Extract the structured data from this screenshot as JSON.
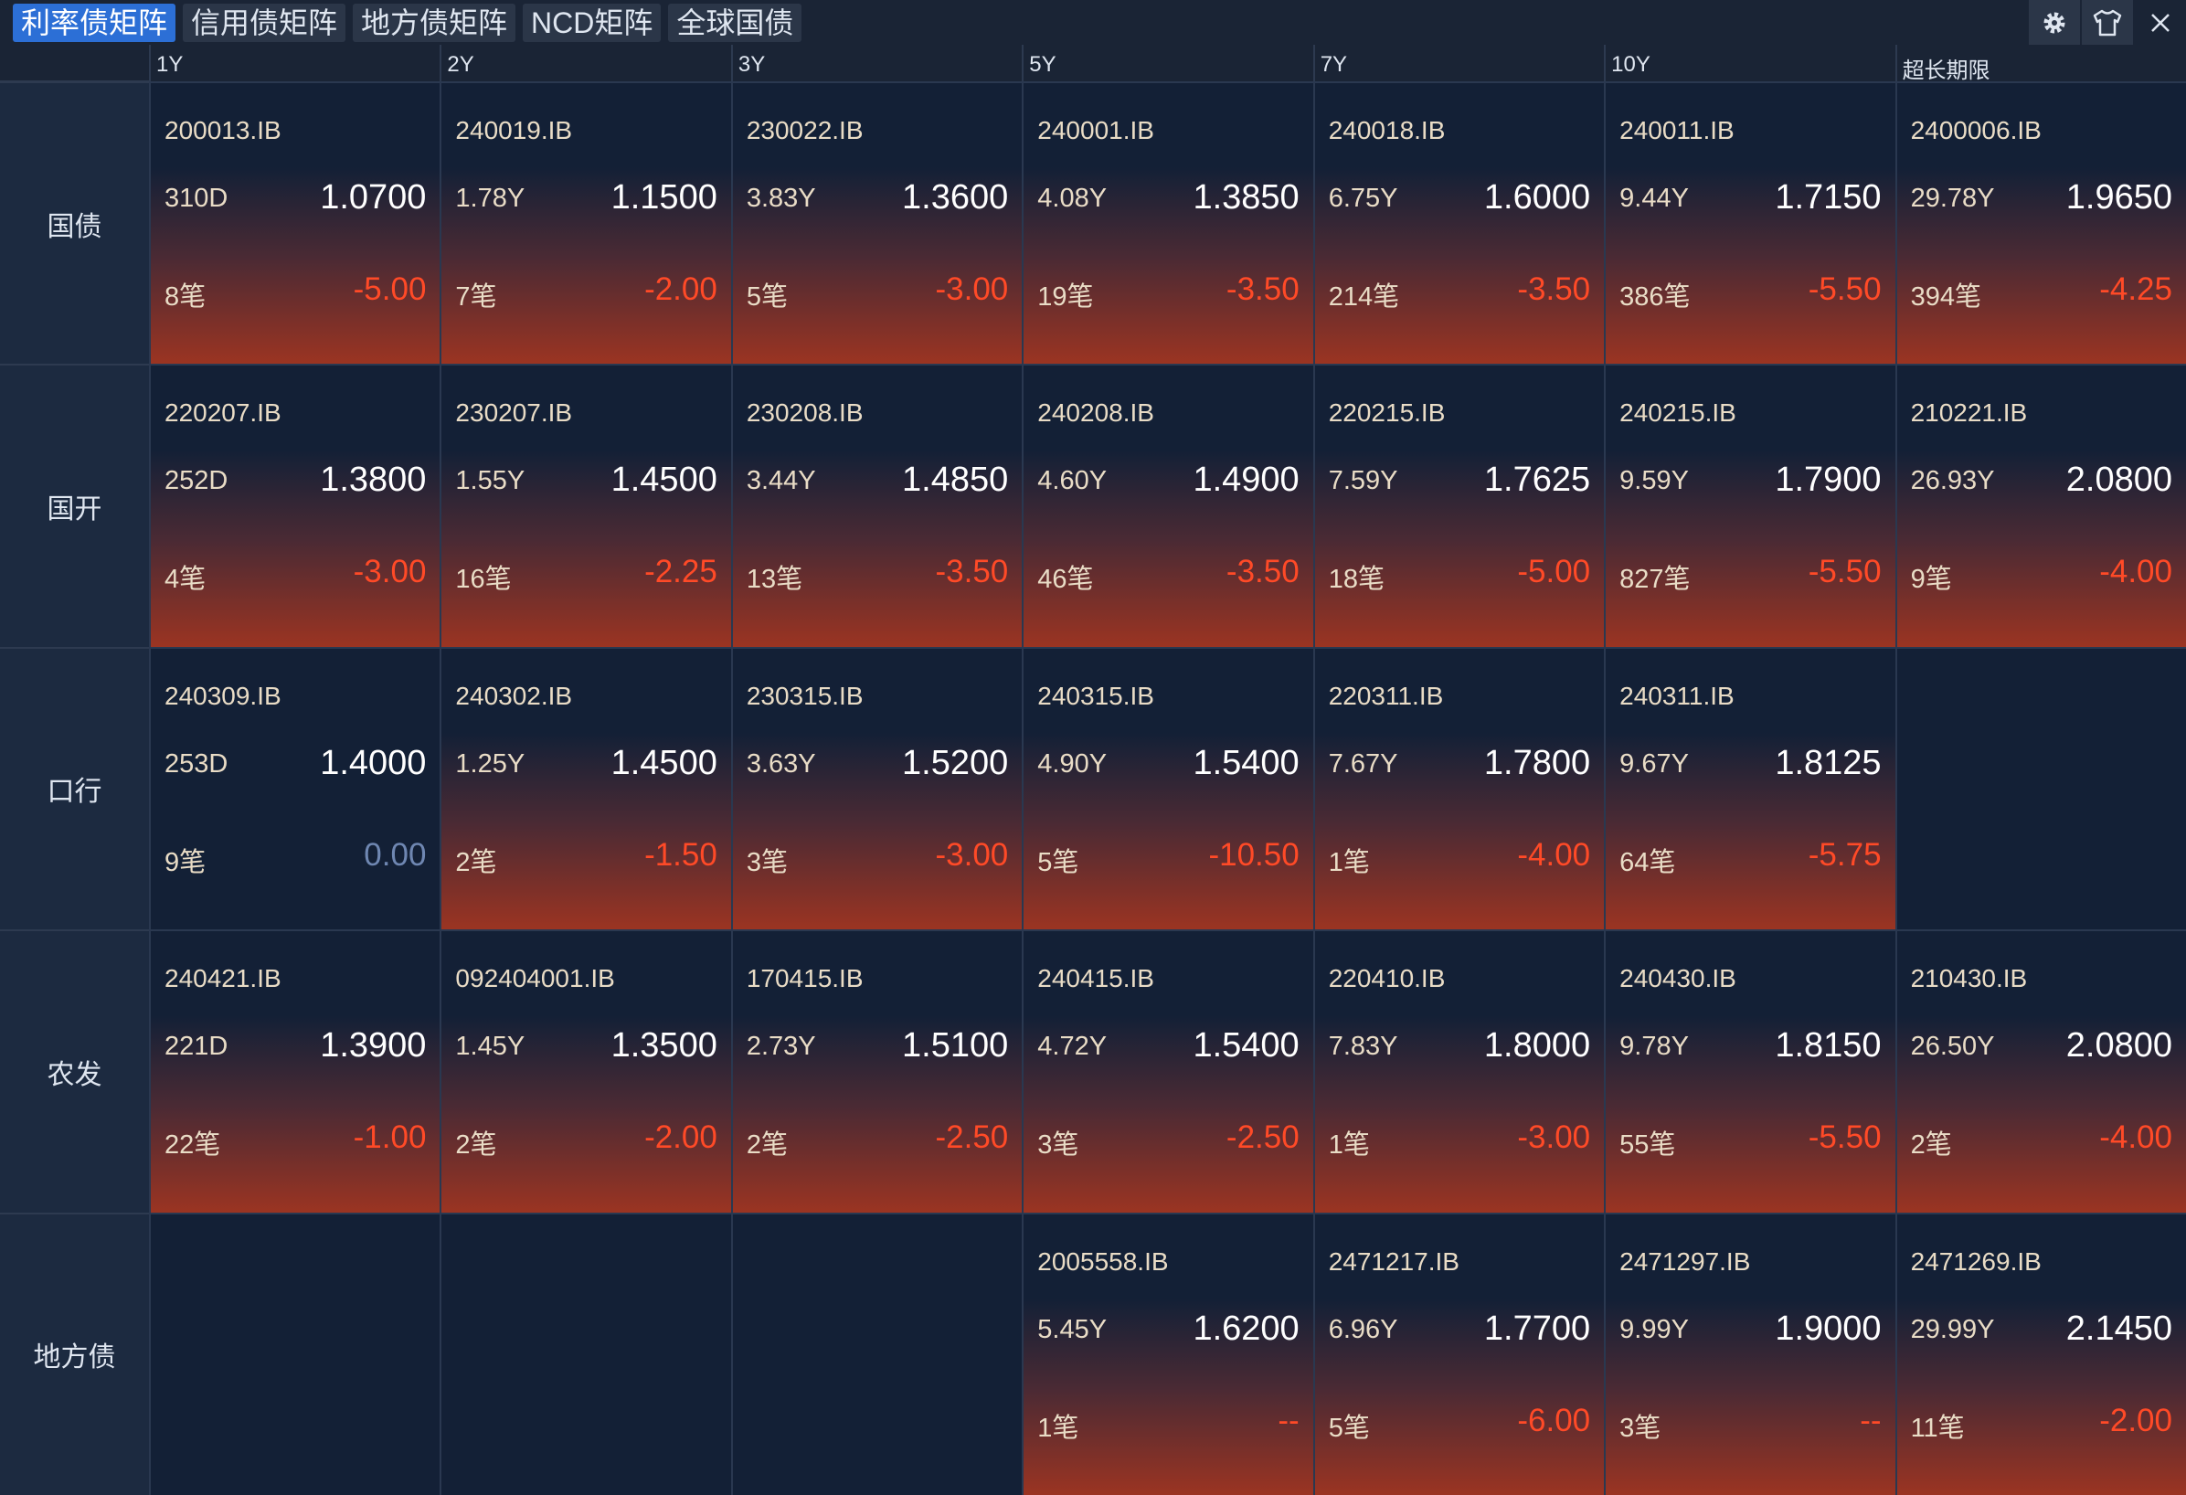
{
  "tabs": [
    "利率债矩阵",
    "信用债矩阵",
    "地方债矩阵",
    "NCD矩阵",
    "全球国债"
  ],
  "columns": [
    "1Y",
    "2Y",
    "3Y",
    "5Y",
    "7Y",
    "10Y",
    "超长期限"
  ],
  "rows": [
    {
      "label": "国债",
      "cells": [
        {
          "code": "200013.IB",
          "term": "310D",
          "yield": "1.0700",
          "count": "8笔",
          "change": "-5.00"
        },
        {
          "code": "240019.IB",
          "term": "1.78Y",
          "yield": "1.1500",
          "count": "7笔",
          "change": "-2.00"
        },
        {
          "code": "230022.IB",
          "term": "3.83Y",
          "yield": "1.3600",
          "count": "5笔",
          "change": "-3.00"
        },
        {
          "code": "240001.IB",
          "term": "4.08Y",
          "yield": "1.3850",
          "count": "19笔",
          "change": "-3.50"
        },
        {
          "code": "240018.IB",
          "term": "6.75Y",
          "yield": "1.6000",
          "count": "214笔",
          "change": "-3.50"
        },
        {
          "code": "240011.IB",
          "term": "9.44Y",
          "yield": "1.7150",
          "count": "386笔",
          "change": "-5.50"
        },
        {
          "code": "2400006.IB",
          "term": "29.78Y",
          "yield": "1.9650",
          "count": "394笔",
          "change": "-4.25"
        }
      ]
    },
    {
      "label": "国开",
      "cells": [
        {
          "code": "220207.IB",
          "term": "252D",
          "yield": "1.3800",
          "count": "4笔",
          "change": "-3.00"
        },
        {
          "code": "230207.IB",
          "term": "1.55Y",
          "yield": "1.4500",
          "count": "16笔",
          "change": "-2.25"
        },
        {
          "code": "230208.IB",
          "term": "3.44Y",
          "yield": "1.4850",
          "count": "13笔",
          "change": "-3.50"
        },
        {
          "code": "240208.IB",
          "term": "4.60Y",
          "yield": "1.4900",
          "count": "46笔",
          "change": "-3.50"
        },
        {
          "code": "220215.IB",
          "term": "7.59Y",
          "yield": "1.7625",
          "count": "18笔",
          "change": "-5.00"
        },
        {
          "code": "240215.IB",
          "term": "9.59Y",
          "yield": "1.7900",
          "count": "827笔",
          "change": "-5.50"
        },
        {
          "code": "210221.IB",
          "term": "26.93Y",
          "yield": "2.0800",
          "count": "9笔",
          "change": "-4.00"
        }
      ]
    },
    {
      "label": "口行",
      "cells": [
        {
          "code": "240309.IB",
          "term": "253D",
          "yield": "1.4000",
          "count": "9笔",
          "change": "0.00"
        },
        {
          "code": "240302.IB",
          "term": "1.25Y",
          "yield": "1.4500",
          "count": "2笔",
          "change": "-1.50"
        },
        {
          "code": "230315.IB",
          "term": "3.63Y",
          "yield": "1.5200",
          "count": "3笔",
          "change": "-3.00"
        },
        {
          "code": "240315.IB",
          "term": "4.90Y",
          "yield": "1.5400",
          "count": "5笔",
          "change": "-10.50"
        },
        {
          "code": "220311.IB",
          "term": "7.67Y",
          "yield": "1.7800",
          "count": "1笔",
          "change": "-4.00"
        },
        {
          "code": "240311.IB",
          "term": "9.67Y",
          "yield": "1.8125",
          "count": "64笔",
          "change": "-5.75"
        },
        null
      ]
    },
    {
      "label": "农发",
      "cells": [
        {
          "code": "240421.IB",
          "term": "221D",
          "yield": "1.3900",
          "count": "22笔",
          "change": "-1.00"
        },
        {
          "code": "092404001.IB",
          "term": "1.45Y",
          "yield": "1.3500",
          "count": "2笔",
          "change": "-2.00"
        },
        {
          "code": "170415.IB",
          "term": "2.73Y",
          "yield": "1.5100",
          "count": "2笔",
          "change": "-2.50"
        },
        {
          "code": "240415.IB",
          "term": "4.72Y",
          "yield": "1.5400",
          "count": "3笔",
          "change": "-2.50"
        },
        {
          "code": "220410.IB",
          "term": "7.83Y",
          "yield": "1.8000",
          "count": "1笔",
          "change": "-3.00"
        },
        {
          "code": "240430.IB",
          "term": "9.78Y",
          "yield": "1.8150",
          "count": "55笔",
          "change": "-5.50"
        },
        {
          "code": "210430.IB",
          "term": "26.50Y",
          "yield": "2.0800",
          "count": "2笔",
          "change": "-4.00"
        }
      ]
    },
    {
      "label": "地方债",
      "cells": [
        null,
        null,
        null,
        {
          "code": "2005558.IB",
          "term": "5.45Y",
          "yield": "1.6200",
          "count": "1笔",
          "change": "--"
        },
        {
          "code": "2471217.IB",
          "term": "6.96Y",
          "yield": "1.7700",
          "count": "5笔",
          "change": "-6.00"
        },
        {
          "code": "2471297.IB",
          "term": "9.99Y",
          "yield": "1.9000",
          "count": "3笔",
          "change": "--"
        },
        {
          "code": "2471269.IB",
          "term": "29.99Y",
          "yield": "2.1450",
          "count": "11笔",
          "change": "-2.00"
        }
      ]
    }
  ]
}
